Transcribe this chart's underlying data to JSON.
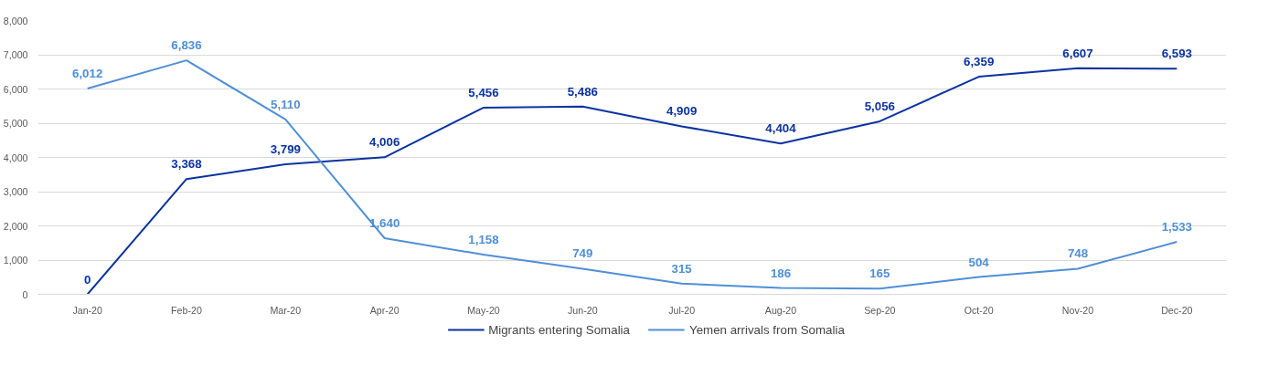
{
  "chart_data": {
    "type": "line",
    "categories": [
      "Jan-20",
      "Feb-20",
      "Mar-20",
      "Apr-20",
      "May-20",
      "Jun-20",
      "Jul-20",
      "Aug-20",
      "Sep-20",
      "Oct-20",
      "Nov-20",
      "Dec-20"
    ],
    "series": [
      {
        "name": "Migrants entering Somalia",
        "color": "#0b33a0",
        "values": [
          0,
          3368,
          3799,
          4006,
          5456,
          5486,
          4909,
          4404,
          5056,
          6359,
          6607,
          6593
        ],
        "value_labels": [
          "0",
          "3,368",
          "3,799",
          "4,006",
          "5,456",
          "5,486",
          "4,909",
          "4,404",
          "5,056",
          "6,359",
          "6,607",
          "6,593"
        ]
      },
      {
        "name": "Yemen arrivals from Somalia",
        "color": "#4f8fd6",
        "values": [
          6012,
          6836,
          5110,
          1640,
          1158,
          749,
          315,
          186,
          165,
          504,
          748,
          1533
        ],
        "value_labels": [
          "6,012",
          "6,836",
          "5,110",
          "1,640",
          "1,158",
          "749",
          "315",
          "186",
          "165",
          "504",
          "748",
          "1,533"
        ]
      }
    ],
    "ylim": [
      0,
      8000
    ],
    "yticks": [
      {
        "value": 0,
        "label": "0"
      },
      {
        "value": 1000,
        "label": "1,000"
      },
      {
        "value": 2000,
        "label": "2,000"
      },
      {
        "value": 3000,
        "label": "3,000"
      },
      {
        "value": 4000,
        "label": "4,000"
      },
      {
        "value": 5000,
        "label": "5,000"
      },
      {
        "value": 6000,
        "label": "6,000"
      },
      {
        "value": 7000,
        "label": "7,000"
      },
      {
        "value": 8000,
        "label": "8,000"
      }
    ],
    "grid": "y",
    "legend": "bottom",
    "marker": "none",
    "line_style": "solid"
  }
}
